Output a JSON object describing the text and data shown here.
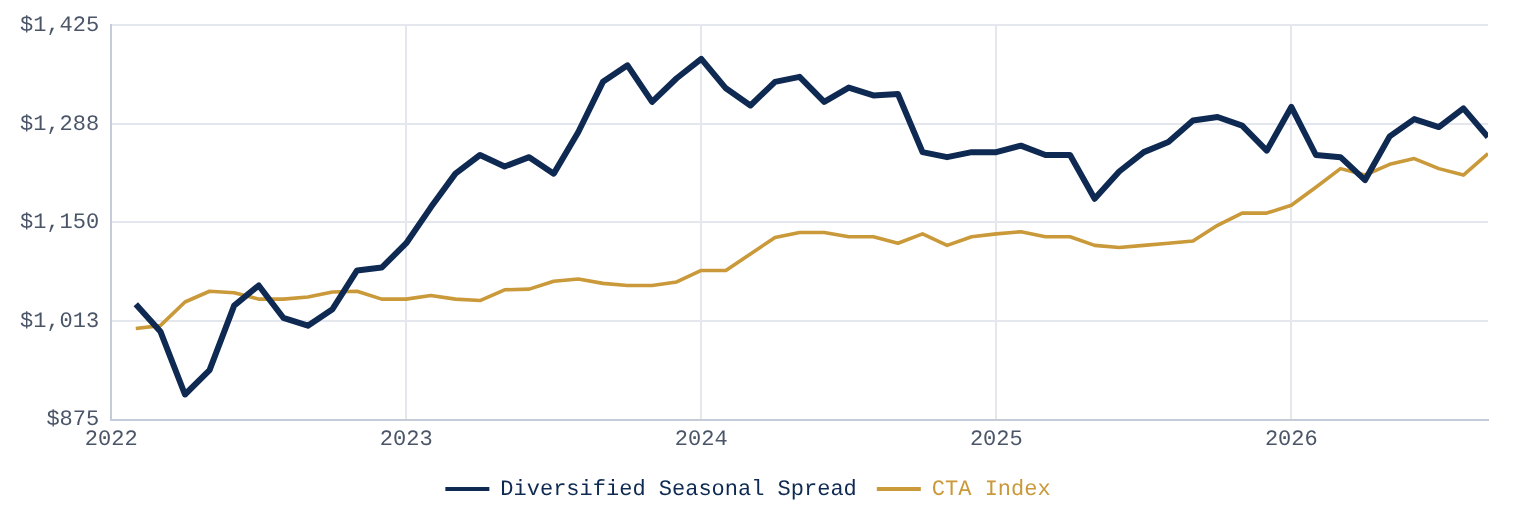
{
  "chart_data": {
    "type": "line",
    "x": [
      "2022-02",
      "2022-03",
      "2022-04",
      "2022-05",
      "2022-06",
      "2022-07",
      "2022-08",
      "2022-09",
      "2022-10",
      "2022-11",
      "2022-12",
      "2023-01",
      "2023-02",
      "2023-03",
      "2023-04",
      "2023-05",
      "2023-06",
      "2023-07",
      "2023-08",
      "2023-09",
      "2023-10",
      "2023-11",
      "2023-12",
      "2024-01",
      "2024-02",
      "2024-03",
      "2024-04",
      "2024-05",
      "2024-06",
      "2024-07",
      "2024-08",
      "2024-09",
      "2024-10",
      "2024-11",
      "2024-12",
      "2025-01",
      "2025-02",
      "2025-03",
      "2025-04",
      "2025-05",
      "2025-06",
      "2025-07",
      "2025-08",
      "2025-09",
      "2025-10",
      "2025-11",
      "2025-12",
      "2026-01",
      "2026-02",
      "2026-03",
      "2026-04",
      "2026-05",
      "2026-06",
      "2026-07",
      "2026-08",
      "2026-09"
    ],
    "series": [
      {
        "name": "Diversified Seasonal Spread",
        "color": "#0f2a52",
        "values": [
          1036,
          998,
          910,
          944,
          1034,
          1062,
          1017,
          1006,
          1029,
          1083,
          1087,
          1121,
          1171,
          1218,
          1244,
          1228,
          1241,
          1218,
          1276,
          1346,
          1369,
          1318,
          1351,
          1378,
          1337,
          1313,
          1346,
          1353,
          1318,
          1338,
          1327,
          1329,
          1248,
          1241,
          1248,
          1248,
          1257,
          1244,
          1244,
          1183,
          1221,
          1248,
          1262,
          1292,
          1297,
          1285,
          1250,
          1311,
          1244,
          1241,
          1209,
          1270,
          1294,
          1283,
          1309,
          1269
        ]
      },
      {
        "name": "CTA Index",
        "color": "#c9993a",
        "values": [
          1002,
          1006,
          1039,
          1054,
          1052,
          1043,
          1043,
          1046,
          1053,
          1054,
          1043,
          1043,
          1048,
          1043,
          1041,
          1056,
          1057,
          1068,
          1071,
          1065,
          1062,
          1062,
          1067,
          1083,
          1083,
          1106,
          1129,
          1136,
          1136,
          1130,
          1130,
          1121,
          1134,
          1118,
          1130,
          1134,
          1137,
          1130,
          1130,
          1118,
          1115,
          1118,
          1121,
          1124,
          1146,
          1163,
          1163,
          1174,
          1199,
          1225,
          1216,
          1231,
          1239,
          1225,
          1216,
          1246
        ]
      }
    ],
    "xlim": [
      "2022-01",
      "2026-09"
    ],
    "xticks": [
      "2022",
      "2023",
      "2024",
      "2025",
      "2026"
    ],
    "ylim": [
      875,
      1425
    ],
    "yticks": [
      {
        "value": 875,
        "label": "$875"
      },
      {
        "value": 1012.5,
        "label": "$1,013"
      },
      {
        "value": 1150,
        "label": "$1,150"
      },
      {
        "value": 1287.5,
        "label": "$1,288"
      },
      {
        "value": 1425,
        "label": "$1,425"
      }
    ],
    "grid": true,
    "legend": "bottom",
    "marker": "none",
    "line_style": "solid"
  }
}
